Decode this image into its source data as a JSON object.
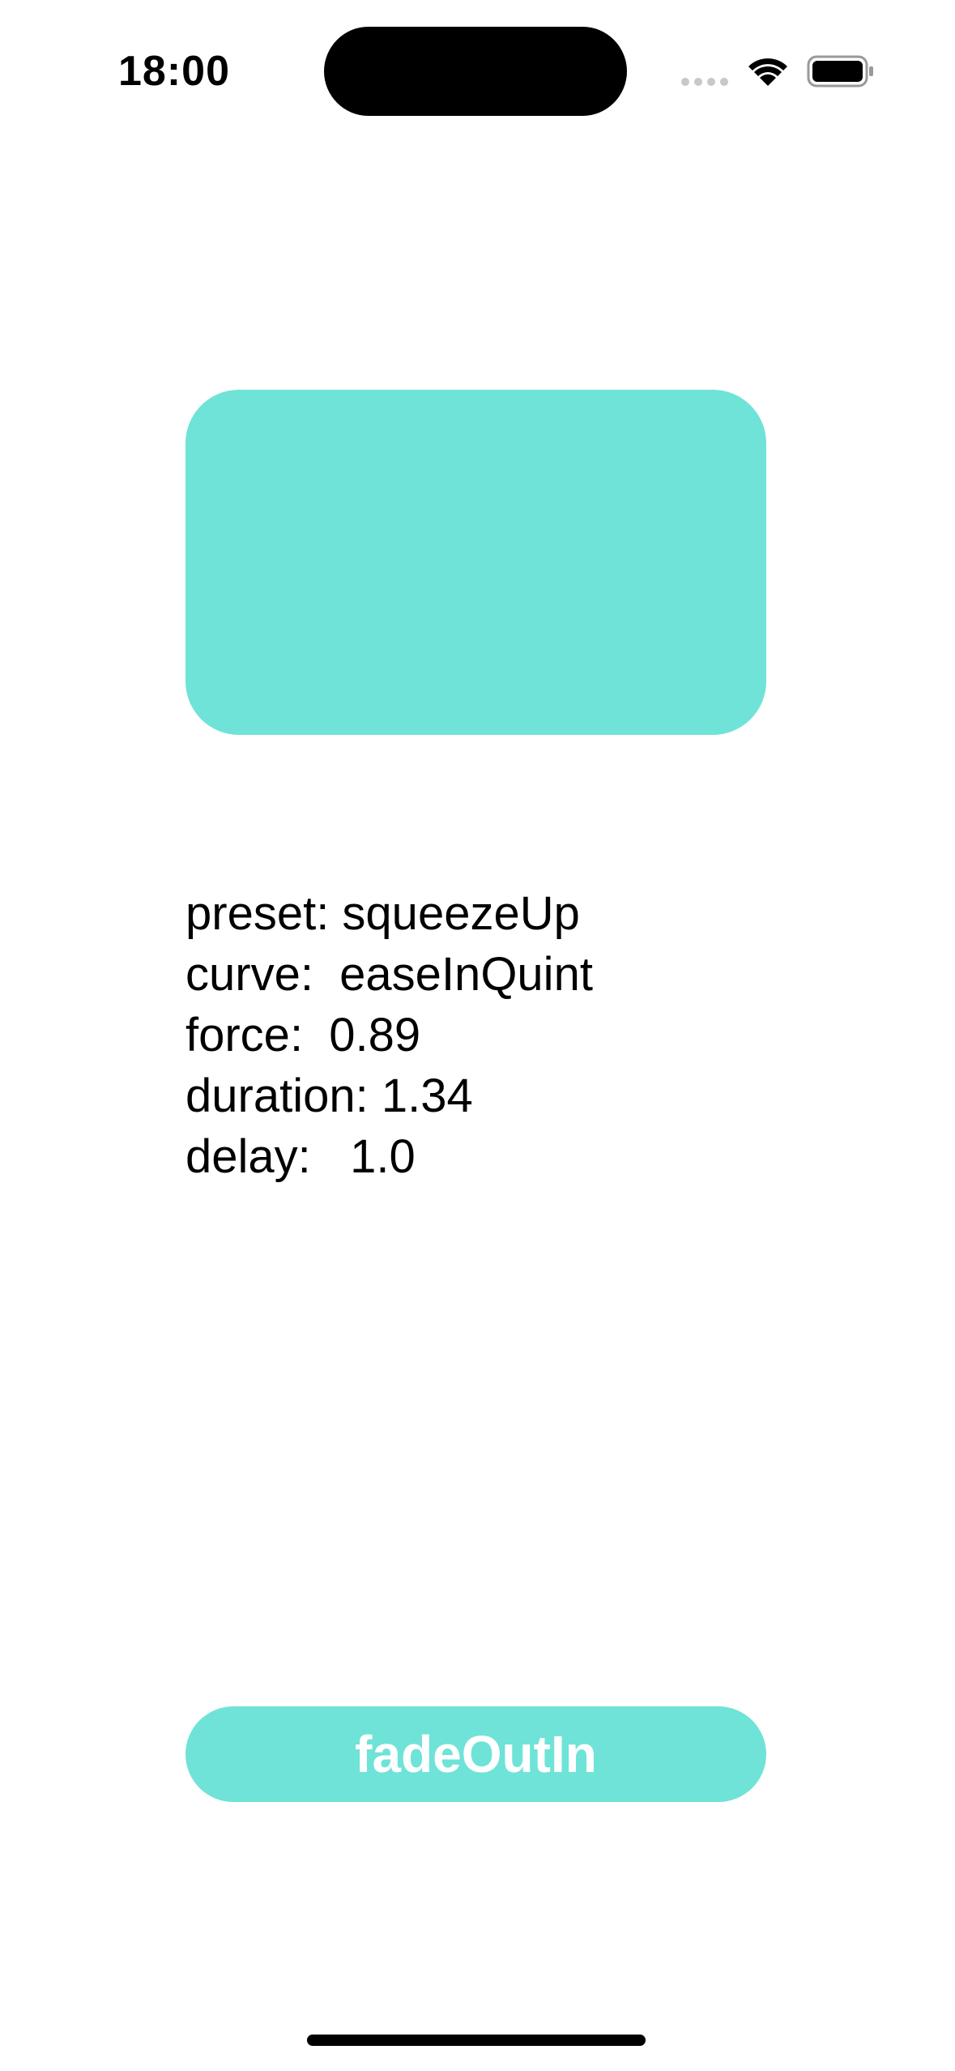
{
  "status_bar": {
    "time": "18:00"
  },
  "info": {
    "lines": [
      "preset: squeezeUp",
      "curve:  easeInQuint",
      "force:  0.89",
      "duration: 1.34",
      "delay:   1.0"
    ]
  },
  "button": {
    "label": "fadeOutIn"
  }
}
